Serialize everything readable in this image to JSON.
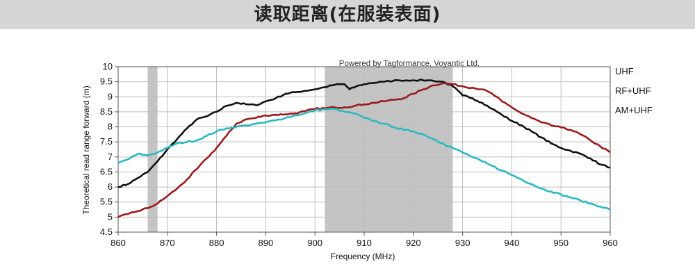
{
  "page": {
    "title": "读取距离(在服装表面)"
  },
  "chart_data": {
    "type": "line",
    "watermark": "Powered by Tagformance, Voyantic Ltd.",
    "xlabel": "Frequency (MHz)",
    "ylabel": "Theoretical read range forward (m)",
    "xlim": [
      860,
      960
    ],
    "ylim": [
      4.5,
      10
    ],
    "xticks": [
      "860",
      "870",
      "880",
      "890",
      "900",
      "910",
      "920",
      "930",
      "940",
      "950",
      "960"
    ],
    "yticks": [
      "4.5",
      "5",
      "5.5",
      "6",
      "6.5",
      "7",
      "7.5",
      "8",
      "8.5",
      "9",
      "9.5",
      "10"
    ],
    "grid": true,
    "bands": [
      {
        "from": 866,
        "to": 868
      },
      {
        "from": 902,
        "to": 928
      }
    ],
    "legend_placement": "right",
    "series": [
      {
        "name": "UHF",
        "color": "#111111",
        "points": [
          [
            860,
            6.0
          ],
          [
            862,
            6.1
          ],
          [
            864,
            6.3
          ],
          [
            866,
            6.5
          ],
          [
            868,
            6.85
          ],
          [
            870,
            7.25
          ],
          [
            872,
            7.6
          ],
          [
            874,
            7.95
          ],
          [
            876,
            8.25
          ],
          [
            878,
            8.35
          ],
          [
            880,
            8.5
          ],
          [
            882,
            8.7
          ],
          [
            884,
            8.8
          ],
          [
            886,
            8.75
          ],
          [
            888,
            8.72
          ],
          [
            890,
            8.85
          ],
          [
            892,
            8.95
          ],
          [
            894,
            9.1
          ],
          [
            896,
            9.15
          ],
          [
            898,
            9.2
          ],
          [
            900,
            9.25
          ],
          [
            902,
            9.32
          ],
          [
            904,
            9.4
          ],
          [
            906,
            9.42
          ],
          [
            907,
            9.25
          ],
          [
            909,
            9.38
          ],
          [
            911,
            9.45
          ],
          [
            914,
            9.5
          ],
          [
            917,
            9.55
          ],
          [
            920,
            9.55
          ],
          [
            923,
            9.55
          ],
          [
            926,
            9.5
          ],
          [
            928,
            9.35
          ],
          [
            930,
            9.05
          ],
          [
            932,
            8.95
          ],
          [
            934,
            8.8
          ],
          [
            936,
            8.6
          ],
          [
            938,
            8.4
          ],
          [
            940,
            8.2
          ],
          [
            942,
            8.05
          ],
          [
            944,
            7.85
          ],
          [
            946,
            7.65
          ],
          [
            948,
            7.45
          ],
          [
            950,
            7.3
          ],
          [
            952,
            7.2
          ],
          [
            954,
            7.1
          ],
          [
            956,
            6.95
          ],
          [
            958,
            6.75
          ],
          [
            960,
            6.65
          ]
        ]
      },
      {
        "name": "RF+UHF",
        "color": "#9b1b1e",
        "points": [
          [
            860,
            5.0
          ],
          [
            862,
            5.1
          ],
          [
            864,
            5.2
          ],
          [
            866,
            5.3
          ],
          [
            868,
            5.45
          ],
          [
            870,
            5.7
          ],
          [
            872,
            5.95
          ],
          [
            874,
            6.25
          ],
          [
            876,
            6.6
          ],
          [
            878,
            6.95
          ],
          [
            880,
            7.3
          ],
          [
            882,
            7.7
          ],
          [
            884,
            8.1
          ],
          [
            886,
            8.25
          ],
          [
            888,
            8.3
          ],
          [
            890,
            8.38
          ],
          [
            892,
            8.4
          ],
          [
            894,
            8.42
          ],
          [
            896,
            8.45
          ],
          [
            898,
            8.52
          ],
          [
            900,
            8.6
          ],
          [
            902,
            8.62
          ],
          [
            904,
            8.65
          ],
          [
            906,
            8.65
          ],
          [
            908,
            8.7
          ],
          [
            910,
            8.75
          ],
          [
            912,
            8.8
          ],
          [
            914,
            8.85
          ],
          [
            916,
            8.9
          ],
          [
            918,
            8.95
          ],
          [
            920,
            9.1
          ],
          [
            922,
            9.25
          ],
          [
            924,
            9.38
          ],
          [
            926,
            9.45
          ],
          [
            928,
            9.42
          ],
          [
            930,
            9.35
          ],
          [
            932,
            9.3
          ],
          [
            934,
            9.25
          ],
          [
            936,
            9.1
          ],
          [
            938,
            8.85
          ],
          [
            940,
            8.65
          ],
          [
            942,
            8.45
          ],
          [
            944,
            8.3
          ],
          [
            946,
            8.15
          ],
          [
            948,
            8.05
          ],
          [
            950,
            7.98
          ],
          [
            952,
            7.9
          ],
          [
            954,
            7.75
          ],
          [
            956,
            7.55
          ],
          [
            958,
            7.35
          ],
          [
            960,
            7.15
          ]
        ]
      },
      {
        "name": "AM+UHF",
        "color": "#2ab9bf",
        "points": [
          [
            860,
            6.8
          ],
          [
            862,
            6.92
          ],
          [
            864,
            7.1
          ],
          [
            866,
            7.05
          ],
          [
            868,
            7.15
          ],
          [
            870,
            7.3
          ],
          [
            872,
            7.45
          ],
          [
            874,
            7.5
          ],
          [
            876,
            7.55
          ],
          [
            878,
            7.7
          ],
          [
            880,
            7.85
          ],
          [
            882,
            7.95
          ],
          [
            884,
            8.0
          ],
          [
            886,
            8.05
          ],
          [
            888,
            8.1
          ],
          [
            890,
            8.15
          ],
          [
            892,
            8.22
          ],
          [
            894,
            8.3
          ],
          [
            896,
            8.38
          ],
          [
            898,
            8.45
          ],
          [
            900,
            8.55
          ],
          [
            902,
            8.58
          ],
          [
            904,
            8.6
          ],
          [
            906,
            8.5
          ],
          [
            908,
            8.45
          ],
          [
            910,
            8.3
          ],
          [
            912,
            8.2
          ],
          [
            914,
            8.1
          ],
          [
            916,
            8.0
          ],
          [
            918,
            7.9
          ],
          [
            920,
            7.85
          ],
          [
            922,
            7.75
          ],
          [
            924,
            7.6
          ],
          [
            926,
            7.45
          ],
          [
            928,
            7.3
          ],
          [
            930,
            7.15
          ],
          [
            932,
            7.0
          ],
          [
            934,
            6.85
          ],
          [
            936,
            6.7
          ],
          [
            938,
            6.55
          ],
          [
            940,
            6.4
          ],
          [
            942,
            6.25
          ],
          [
            944,
            6.1
          ],
          [
            946,
            5.95
          ],
          [
            948,
            5.85
          ],
          [
            950,
            5.75
          ],
          [
            952,
            5.65
          ],
          [
            954,
            5.55
          ],
          [
            956,
            5.45
          ],
          [
            958,
            5.35
          ],
          [
            960,
            5.25
          ]
        ]
      }
    ]
  }
}
